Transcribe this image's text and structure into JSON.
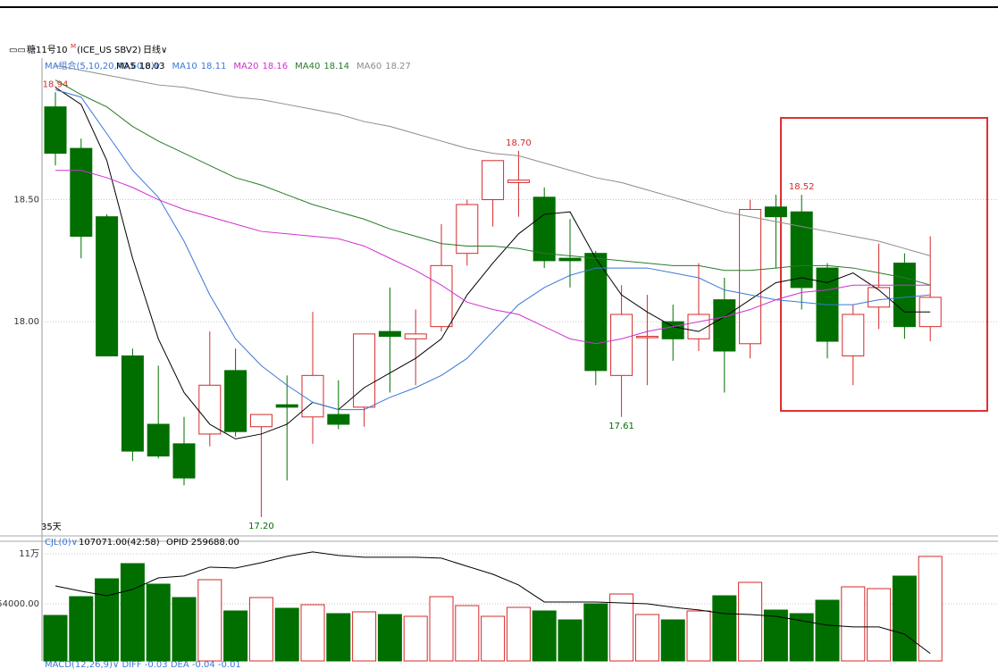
{
  "header": {
    "icon": "▭▭",
    "symbol": "糖11号10",
    "contract_flag": "M",
    "exchange": "(ICE_US SBV2)",
    "period": "日线∨"
  },
  "chart_data": [
    {
      "type": "candlestick",
      "ma_header": "MA组合(5,10,20,40,60,0)∨",
      "days_label": "35天",
      "open": [
        18.88,
        18.71,
        18.43,
        17.86,
        17.58,
        17.5,
        17.54,
        17.8,
        17.57,
        17.66,
        17.61,
        17.62,
        17.65,
        17.96,
        17.93,
        17.98,
        18.28,
        18.5,
        18.57,
        18.51,
        18.26,
        18.28,
        17.78,
        17.94,
        18.0,
        17.93,
        18.09,
        17.91,
        18.47,
        18.45,
        18.22,
        17.86,
        18.06,
        18.24,
        17.98
      ],
      "high": [
        18.94,
        18.75,
        18.44,
        17.89,
        17.82,
        17.61,
        17.96,
        17.89,
        17.62,
        17.78,
        18.04,
        17.76,
        17.95,
        18.14,
        18.05,
        18.4,
        18.5,
        18.66,
        18.7,
        18.55,
        18.42,
        18.29,
        18.15,
        18.11,
        18.07,
        18.24,
        18.18,
        18.5,
        18.52,
        18.52,
        18.24,
        18.07,
        18.32,
        18.28,
        18.35
      ],
      "low": [
        18.64,
        18.26,
        17.86,
        17.43,
        17.44,
        17.33,
        17.49,
        17.53,
        17.2,
        17.35,
        17.5,
        17.56,
        17.57,
        17.71,
        17.74,
        17.96,
        18.23,
        18.39,
        18.43,
        18.22,
        18.14,
        17.74,
        17.61,
        17.74,
        17.84,
        17.88,
        17.71,
        17.85,
        18.22,
        18.05,
        17.85,
        17.74,
        17.97,
        17.93,
        17.92
      ],
      "close": [
        18.69,
        18.35,
        17.86,
        17.47,
        17.45,
        17.36,
        17.74,
        17.55,
        17.62,
        17.65,
        17.78,
        17.58,
        17.95,
        17.94,
        17.95,
        18.23,
        18.48,
        18.66,
        18.58,
        18.25,
        18.25,
        17.8,
        18.03,
        17.94,
        17.93,
        18.03,
        17.88,
        18.46,
        18.43,
        18.14,
        17.92,
        18.03,
        18.14,
        17.98,
        18.1
      ],
      "high_labels": [
        "18.94",
        null,
        null,
        null,
        null,
        null,
        null,
        null,
        null,
        null,
        null,
        null,
        null,
        null,
        null,
        null,
        null,
        null,
        "18.70",
        null,
        null,
        null,
        null,
        null,
        null,
        null,
        null,
        null,
        null,
        "18.52",
        null,
        null,
        null,
        null,
        null
      ],
      "low_labels": [
        null,
        null,
        null,
        null,
        null,
        null,
        null,
        null,
        "17.20",
        null,
        null,
        null,
        null,
        null,
        null,
        null,
        null,
        null,
        null,
        null,
        null,
        null,
        "17.61",
        null,
        null,
        null,
        null,
        null,
        null,
        null,
        null,
        null,
        null,
        null,
        null
      ],
      "up_color": "#d42a2a",
      "down_color": "#006f00",
      "series": [
        {
          "name": "MA5",
          "legend_value": 18.03,
          "color": "#000000",
          "values": [
            18.96,
            18.89,
            18.66,
            18.26,
            17.93,
            17.71,
            17.58,
            17.52,
            17.54,
            17.58,
            17.67,
            17.64,
            17.73,
            17.79,
            17.85,
            17.93,
            18.11,
            18.24,
            18.36,
            18.44,
            18.45,
            18.26,
            18.11,
            18.04,
            17.98,
            17.96,
            18.02,
            18.09,
            18.16,
            18.18,
            18.16,
            18.2,
            18.13,
            18.04,
            18.04
          ]
        },
        {
          "name": "MA10",
          "legend_value": 18.11,
          "color": "#3a78d8",
          "values": [
            18.95,
            18.92,
            18.77,
            18.62,
            18.51,
            18.33,
            18.11,
            17.93,
            17.82,
            17.74,
            17.67,
            17.64,
            17.64,
            17.69,
            17.73,
            17.78,
            17.85,
            17.96,
            18.07,
            18.14,
            18.19,
            18.22,
            18.22,
            18.22,
            18.2,
            18.18,
            18.13,
            18.11,
            18.09,
            18.08,
            18.07,
            18.07,
            18.09,
            18.1,
            18.11
          ]
        },
        {
          "name": "MA20",
          "legend_value": 18.16,
          "color": "#d030d0",
          "values": [
            18.62,
            18.62,
            18.59,
            18.55,
            18.5,
            18.46,
            18.43,
            18.4,
            18.37,
            18.36,
            18.35,
            18.34,
            18.31,
            18.26,
            18.21,
            18.15,
            18.08,
            18.05,
            18.03,
            17.98,
            17.93,
            17.91,
            17.93,
            17.96,
            17.98,
            18.0,
            18.02,
            18.05,
            18.09,
            18.12,
            18.13,
            18.15,
            18.15,
            18.15,
            18.15
          ]
        },
        {
          "name": "MA40",
          "legend_value": 18.14,
          "color": "#2a7a2a",
          "values": [
            18.99,
            18.93,
            18.88,
            18.8,
            18.74,
            18.69,
            18.64,
            18.59,
            18.56,
            18.52,
            18.48,
            18.45,
            18.42,
            18.38,
            18.35,
            18.32,
            18.31,
            18.31,
            18.3,
            18.28,
            18.27,
            18.26,
            18.25,
            18.24,
            18.23,
            18.23,
            18.21,
            18.21,
            18.22,
            18.23,
            18.23,
            18.22,
            18.2,
            18.18,
            18.15
          ]
        },
        {
          "name": "MA60",
          "legend_value": 18.27,
          "color": "#8c8c8c",
          "values": [
            19.05,
            19.03,
            19.01,
            18.99,
            18.97,
            18.96,
            18.94,
            18.92,
            18.91,
            18.89,
            18.87,
            18.85,
            18.82,
            18.8,
            18.77,
            18.74,
            18.71,
            18.69,
            18.68,
            18.65,
            18.62,
            18.59,
            18.57,
            18.54,
            18.51,
            18.48,
            18.45,
            18.43,
            18.41,
            18.39,
            18.37,
            18.35,
            18.33,
            18.3,
            18.27
          ]
        }
      ],
      "ylim": [
        17.13,
        19.08
      ],
      "yticks": [
        {
          "value": 18.5,
          "label": "18.50"
        },
        {
          "value": 18,
          "label": "18.00"
        }
      ],
      "grid": true
    },
    {
      "type": "volume",
      "indicator": "CJL(0)∨",
      "last_volume": "107071.00(42:58)",
      "oi_label": "OPID 259688.00",
      "values": [
        41000,
        62000,
        82000,
        99000,
        76000,
        61000,
        81000,
        46000,
        61000,
        49000,
        53000,
        43000,
        45000,
        42000,
        40000,
        62000,
        52000,
        40000,
        50000,
        46000,
        36000,
        54000,
        65000,
        42000,
        36000,
        46000,
        63000,
        78000,
        47000,
        43000,
        58000,
        73000,
        71000,
        85000,
        107071
      ],
      "series": [
        {
          "axis": "y2",
          "color": "#000000",
          "values": [
            320600,
            315800,
            311700,
            317400,
            327800,
            329500,
            337500,
            336700,
            341500,
            347200,
            351200,
            348000,
            346400,
            346400,
            346400,
            345600,
            338300,
            331100,
            321400,
            306100,
            306100,
            306100,
            305300,
            304500,
            301300,
            298900,
            295600,
            294800,
            293200,
            289200,
            285200,
            283600,
            283600,
            277100,
            259688
          ]
        }
      ],
      "ylim": [
        0,
        123000
      ],
      "yticks": [
        {
          "value": 110000,
          "label": "11万"
        },
        {
          "value": 54000,
          "label": "54000.00"
        }
      ],
      "y2lim": [
        261000,
        360000
      ],
      "grid": true,
      "footer": "MACD(12,26,9)∨ DIFF -0.03 DEA -0.04 -0.01"
    }
  ]
}
